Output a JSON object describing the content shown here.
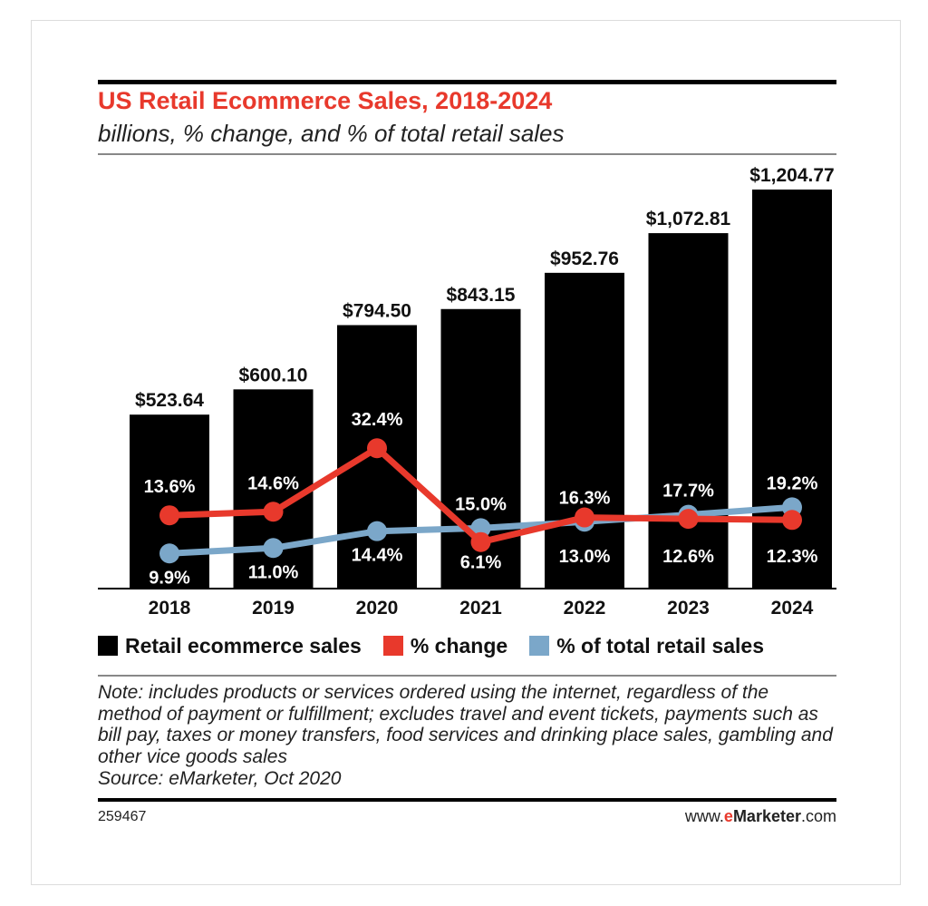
{
  "title": "US Retail Ecommerce Sales, 2018-2024",
  "subtitle": "billions, % change, and % of total retail sales",
  "colors": {
    "bars": "#000000",
    "change": "#e8392c",
    "share": "#7ba7c9",
    "title": "#e8392c"
  },
  "chart_data": {
    "type": "bar",
    "categories": [
      "2018",
      "2019",
      "2020",
      "2021",
      "2022",
      "2023",
      "2024"
    ],
    "series": [
      {
        "name": "Retail ecommerce sales",
        "type": "bar",
        "values": [
          523.64,
          600.1,
          794.5,
          843.15,
          952.76,
          1072.81,
          1204.77
        ],
        "labels": [
          "$523.64",
          "$600.10",
          "$794.50",
          "$843.15",
          "$952.76",
          "$1,072.81",
          "$1,204.77"
        ]
      },
      {
        "name": "% change",
        "type": "line",
        "values": [
          13.6,
          14.6,
          32.4,
          6.1,
          13.0,
          12.6,
          12.3
        ],
        "labels": [
          "13.6%",
          "14.6%",
          "32.4%",
          "6.1%",
          "13.0%",
          "12.6%",
          "12.3%"
        ]
      },
      {
        "name": "% of total retail sales",
        "type": "line",
        "values": [
          9.9,
          11.0,
          14.4,
          15.0,
          16.3,
          17.7,
          19.2
        ],
        "labels": [
          "9.9%",
          "11.0%",
          "14.4%",
          "15.0%",
          "16.3%",
          "17.7%",
          "19.2%"
        ]
      }
    ],
    "legend_position": "bottom",
    "grid": false
  },
  "legend": [
    "Retail ecommerce sales",
    "% change",
    "% of total retail sales"
  ],
  "note": "Note: includes products or services ordered using the internet, regardless of the method of payment or fulfillment; excludes travel and event tickets, payments such as bill pay, taxes or money transfers, food services and drinking place sales, gambling and other vice goods sales",
  "source": "Source: eMarketer, Oct 2020",
  "chart_id": "259467",
  "site": {
    "prefix": "www.",
    "brand_e": "e",
    "brand_rest": "Marketer",
    "suffix": ".com"
  }
}
